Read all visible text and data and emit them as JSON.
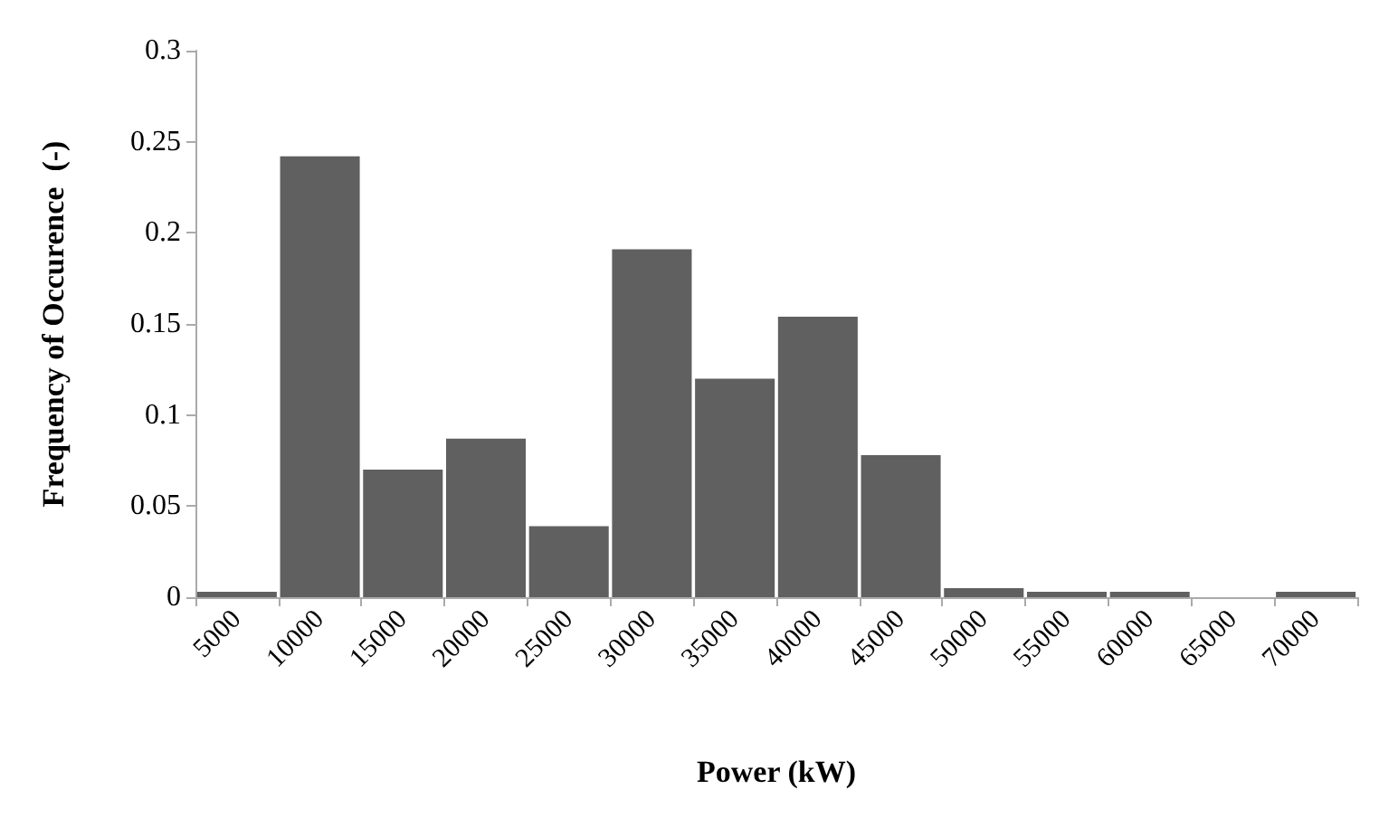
{
  "chart_data": {
    "type": "bar",
    "xlabel": "Power (kW)",
    "ylabel": "Frequency of Occurence  (-)",
    "categories": [
      "5000",
      "10000",
      "15000",
      "20000",
      "25000",
      "30000",
      "35000",
      "40000",
      "45000",
      "50000",
      "55000",
      "60000",
      "65000",
      "70000"
    ],
    "values": [
      0.003,
      0.242,
      0.07,
      0.087,
      0.039,
      0.191,
      0.12,
      0.154,
      0.078,
      0.005,
      0.003,
      0.003,
      0,
      0.003
    ],
    "color": "#606060",
    "ylim": [
      0,
      0.3
    ],
    "yticks": [
      0,
      0.05,
      0.1,
      0.15,
      0.2,
      0.25,
      0.3
    ],
    "grid": false
  }
}
